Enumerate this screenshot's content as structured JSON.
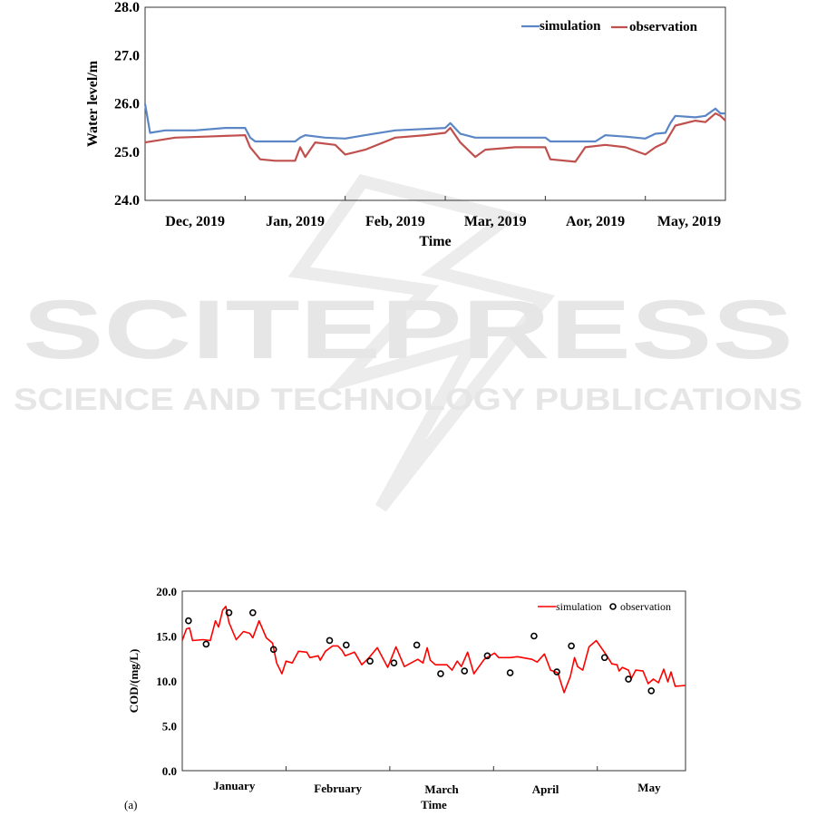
{
  "watermark": {
    "title": "SCITEPRESS",
    "subtitle": "SCIENCE AND TECHNOLOGY PUBLICATIONS"
  },
  "chart_data": [
    {
      "type": "line",
      "title": "",
      "xlabel": "Time",
      "ylabel": "Water level/m",
      "ylim": [
        24.0,
        28.0
      ],
      "yticks": [
        "24.0",
        "25.0",
        "26.0",
        "27.0",
        "28.0"
      ],
      "xlim": [
        0,
        5.8
      ],
      "x_unit": "months from start",
      "categories": [
        "Dec, 2019",
        "Jan, 2019",
        "Feb, 2019",
        "Mar, 2019",
        "Aor, 2019",
        "May, 2019"
      ],
      "legend": {
        "placement": "top-right",
        "entries": [
          "simulation",
          "observation"
        ]
      },
      "colors": {
        "simulation": "#5b86c6",
        "observation": "#c0504d"
      },
      "series": [
        {
          "name": "simulation",
          "x": [
            0,
            0.05,
            0.2,
            0.5,
            0.8,
            1.0,
            1.05,
            1.1,
            1.5,
            1.55,
            1.6,
            1.8,
            2.0,
            2.2,
            2.5,
            2.8,
            3.0,
            3.05,
            3.15,
            3.3,
            3.5,
            3.8,
            4.0,
            4.05,
            4.5,
            4.6,
            4.8,
            5.0,
            5.1,
            5.2,
            5.25,
            5.3,
            5.5,
            5.6,
            5.7,
            5.75,
            5.8
          ],
          "y": [
            26.0,
            25.4,
            25.45,
            25.45,
            25.5,
            25.5,
            25.3,
            25.22,
            25.22,
            25.3,
            25.35,
            25.3,
            25.28,
            25.35,
            25.45,
            25.48,
            25.5,
            25.6,
            25.38,
            25.3,
            25.3,
            25.3,
            25.3,
            25.22,
            25.22,
            25.35,
            25.32,
            25.28,
            25.38,
            25.4,
            25.6,
            25.75,
            25.72,
            25.75,
            25.9,
            25.8,
            25.8
          ]
        },
        {
          "name": "observation",
          "x": [
            0,
            0.3,
            0.6,
            1.0,
            1.05,
            1.15,
            1.3,
            1.5,
            1.55,
            1.6,
            1.7,
            1.9,
            2.0,
            2.1,
            2.2,
            2.5,
            2.8,
            3.0,
            3.05,
            3.15,
            3.3,
            3.4,
            3.7,
            4.0,
            4.05,
            4.3,
            4.4,
            4.6,
            4.8,
            5.0,
            5.1,
            5.2,
            5.3,
            5.5,
            5.6,
            5.7,
            5.75,
            5.8
          ],
          "y": [
            25.2,
            25.3,
            25.32,
            25.35,
            25.1,
            24.85,
            24.82,
            24.82,
            25.1,
            24.9,
            25.2,
            25.15,
            24.95,
            25.0,
            25.05,
            25.3,
            25.35,
            25.4,
            25.5,
            25.2,
            24.9,
            25.05,
            25.1,
            25.1,
            24.85,
            24.8,
            25.1,
            25.15,
            25.1,
            24.95,
            25.1,
            25.2,
            25.55,
            25.65,
            25.62,
            25.8,
            25.75,
            25.65
          ]
        }
      ]
    },
    {
      "type": "line",
      "title": "",
      "panel_label": "(a)",
      "xlabel": "Time",
      "ylabel": "COD/(mg/L)",
      "ylim": [
        0.0,
        20.0
      ],
      "yticks": [
        "0.0",
        "5.0",
        "10.0",
        "15.0",
        "20.0"
      ],
      "xlim": [
        0,
        4.85
      ],
      "x_unit": "months from start",
      "categories": [
        "January",
        "February",
        "March",
        "April",
        "May"
      ],
      "legend": {
        "placement": "top-right",
        "entries": [
          "simulation",
          "observation"
        ]
      },
      "colors": {
        "simulation": "#ff0000",
        "observation": "#000000"
      },
      "series": [
        {
          "name": "simulation",
          "type": "line",
          "x": [
            0,
            0.04,
            0.07,
            0.1,
            0.2,
            0.27,
            0.32,
            0.35,
            0.39,
            0.42,
            0.45,
            0.52,
            0.59,
            0.65,
            0.68,
            0.74,
            0.81,
            0.87,
            0.91,
            0.96,
            1.0,
            1.06,
            1.12,
            1.2,
            1.23,
            1.31,
            1.33,
            1.38,
            1.45,
            1.5,
            1.54,
            1.57,
            1.66,
            1.73,
            1.8,
            1.88,
            1.98,
            2.06,
            2.14,
            2.27,
            2.32,
            2.36,
            2.39,
            2.44,
            2.55,
            2.6,
            2.65,
            2.69,
            2.75,
            2.81,
            2.91,
            3.01,
            3.05,
            3.16,
            3.23,
            3.37,
            3.42,
            3.49,
            3.55,
            3.62,
            3.68,
            3.74,
            3.78,
            3.81,
            3.86,
            3.92,
            3.99,
            4.08,
            4.14,
            4.19,
            4.21,
            4.24,
            4.3,
            4.33,
            4.37,
            4.44,
            4.49,
            4.54,
            4.59,
            4.64,
            4.68,
            4.71,
            4.75,
            4.85
          ],
          "y": [
            14.5,
            15.8,
            15.9,
            14.5,
            14.6,
            14.5,
            16.7,
            16.0,
            17.9,
            18.3,
            16.5,
            14.6,
            15.5,
            15.3,
            14.8,
            16.7,
            14.8,
            14.2,
            12.0,
            10.8,
            12.2,
            12.0,
            13.3,
            13.2,
            12.6,
            12.8,
            12.3,
            13.3,
            13.9,
            13.9,
            13.4,
            12.8,
            13.2,
            11.8,
            12.6,
            13.7,
            11.5,
            13.8,
            11.6,
            12.4,
            12.0,
            13.7,
            12.3,
            11.8,
            11.8,
            11.2,
            12.2,
            11.6,
            13.2,
            10.8,
            12.4,
            13.1,
            12.6,
            12.6,
            12.7,
            12.4,
            12.1,
            13.0,
            11.2,
            10.9,
            8.7,
            10.5,
            12.6,
            11.6,
            11.2,
            13.8,
            14.5,
            13.0,
            11.9,
            11.8,
            11.1,
            11.5,
            11.2,
            10.3,
            11.2,
            11.1,
            9.7,
            10.2,
            9.8,
            11.3,
            9.9,
            11.0,
            9.4,
            9.5
          ]
        },
        {
          "name": "observation",
          "type": "scatter",
          "x": [
            0.06,
            0.23,
            0.45,
            0.68,
            0.88,
            1.42,
            1.58,
            1.81,
            2.04,
            2.26,
            2.49,
            2.72,
            2.94,
            3.16,
            3.39,
            3.61,
            3.75,
            4.07,
            4.3,
            4.52
          ],
          "y": [
            16.7,
            14.1,
            17.6,
            17.6,
            13.5,
            14.5,
            14.0,
            12.2,
            12.0,
            14.0,
            10.8,
            11.1,
            12.8,
            10.9,
            15.0,
            11.0,
            13.9,
            12.6,
            10.2,
            8.9
          ]
        }
      ]
    }
  ]
}
